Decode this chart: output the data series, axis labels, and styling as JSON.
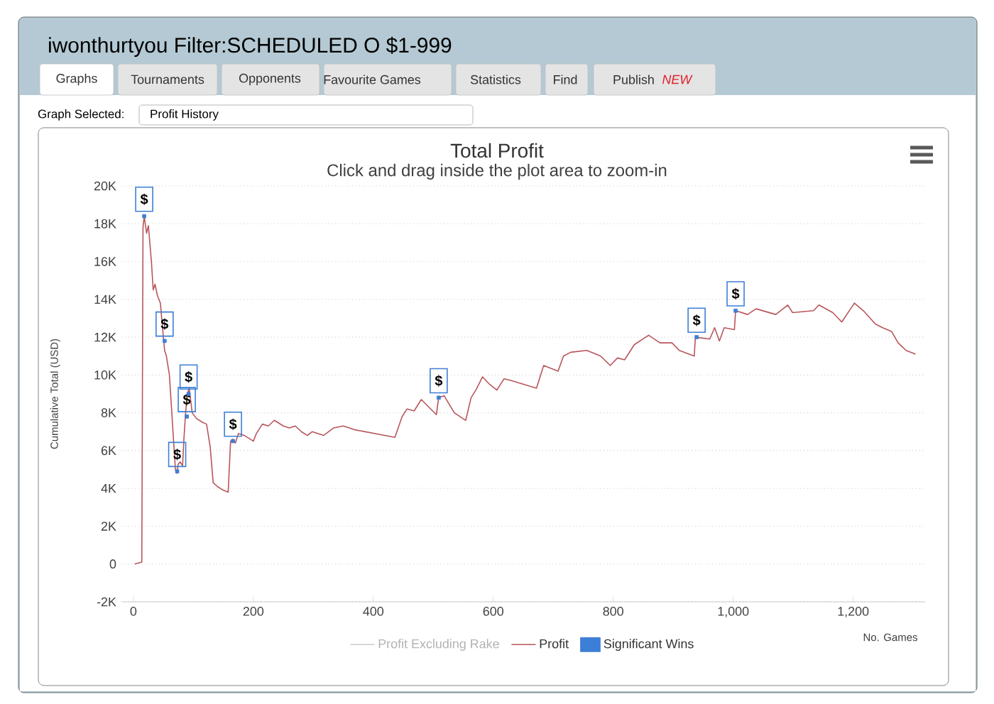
{
  "chart_data": {
    "type": "line",
    "title": "Total Profit",
    "subtitle": "Click and drag inside the plot area to zoom-in",
    "xlabel": "No. Games",
    "ylabel": "Cumulative Total (USD)",
    "annotations": [
      "iwonthurtyou Filter:SCHEDULED O $1-999",
      "Graphs",
      "Tournaments",
      "Opponents",
      "Favourite Games",
      "Statistics",
      "Find",
      "Publish",
      "*NEW*",
      "Graph Selected:",
      "Profit History"
    ],
    "series": [
      {
        "name": "Profit Excluding Rake",
        "color": "#cccccc"
      },
      {
        "name": "Profit",
        "color": "#b8565a",
        "x": [
          2,
          14,
          16,
          18,
          22,
          25,
          30,
          33,
          36,
          40,
          45,
          50,
          52,
          55,
          60,
          64,
          68,
          70,
          72,
          75,
          78,
          82,
          84,
          87,
          90,
          93,
          98,
          105,
          115,
          122,
          128,
          133,
          140,
          150,
          158,
          162,
          166,
          170,
          175,
          185,
          195,
          200,
          205,
          215,
          225,
          235,
          250,
          260,
          270,
          280,
          290,
          298,
          317,
          334,
          350,
          369,
          436,
          448,
          456,
          468,
          480,
          505,
          509,
          518,
          535,
          554,
          563,
          571,
          582,
          594,
          606,
          618,
          630,
          672,
          684,
          708,
          717,
          729,
          756,
          779,
          795,
          807,
          819,
          835,
          859,
          878,
          898,
          910,
          935,
          937,
          961,
          969,
          977,
          985,
          1002,
          1004,
          1024,
          1038,
          1071,
          1091,
          1099,
          1134,
          1143,
          1166,
          1181,
          1202,
          1217,
          1237,
          1249,
          1264,
          1275,
          1288,
          1304
        ],
        "values": [
          0,
          100,
          17800,
          18400,
          17500,
          17900,
          16000,
          14500,
          14800,
          14200,
          13800,
          12000,
          11300,
          11000,
          10000,
          8000,
          6000,
          5000,
          4800,
          5300,
          5400,
          5200,
          6500,
          8000,
          9000,
          9300,
          8000,
          7700,
          7500,
          7400,
          6200,
          4300,
          4100,
          3900,
          3800,
          6500,
          6600,
          6400,
          6900,
          6800,
          6600,
          6500,
          6900,
          7400,
          7300,
          7600,
          7300,
          7200,
          7300,
          7000,
          6800,
          7000,
          6800,
          7200,
          7300,
          7100,
          6700,
          7800,
          8200,
          8100,
          8700,
          7900,
          8800,
          8900,
          8000,
          7600,
          8800,
          9200,
          9900,
          9500,
          9200,
          9800,
          9700,
          9300,
          10500,
          10200,
          11000,
          11200,
          11300,
          11000,
          10500,
          10900,
          10800,
          11600,
          12100,
          11700,
          11700,
          11300,
          11000,
          12000,
          11900,
          12500,
          11800,
          12500,
          12400,
          13400,
          13200,
          13500,
          13200,
          13700,
          13300,
          13400,
          13700,
          13300,
          12800,
          13800,
          13400,
          12700,
          12500,
          12300,
          11700,
          11300,
          11100
        ]
      },
      {
        "name": "Significant Wins",
        "type": "scatter",
        "color": "#3d7fd6",
        "x": [
          18,
          52,
          73,
          89,
          92,
          166,
          509,
          939,
          1004
        ],
        "values": [
          18400,
          11800,
          4900,
          7800,
          9000,
          6500,
          8800,
          12000,
          13400
        ],
        "value_labels": [
          "$",
          "$",
          "$",
          "$",
          "$",
          "$",
          "$",
          "$",
          "$"
        ]
      }
    ],
    "xlim": [
      -20,
      1320
    ],
    "ylim": [
      -2000,
      20000
    ],
    "xticks": [
      0,
      200,
      400,
      600,
      800,
      {
        "value": 1000,
        "label": "1,000"
      },
      {
        "value": 1200,
        "label": "1,200"
      }
    ],
    "yticks": [
      {
        "value": -2000,
        "label": "-2K"
      },
      0,
      {
        "value": 2000,
        "label": "2K"
      },
      {
        "value": 4000,
        "label": "4K"
      },
      {
        "value": 6000,
        "label": "6K"
      },
      {
        "value": 8000,
        "label": "8K"
      },
      {
        "value": 10000,
        "label": "10K"
      },
      {
        "value": 12000,
        "label": "12K"
      },
      {
        "value": 14000,
        "label": "14K"
      },
      {
        "value": 16000,
        "label": "16K"
      },
      {
        "value": 18000,
        "label": "18K"
      },
      {
        "value": 20000,
        "label": "20K"
      }
    ],
    "grid": "y",
    "legend": "bottom"
  }
}
